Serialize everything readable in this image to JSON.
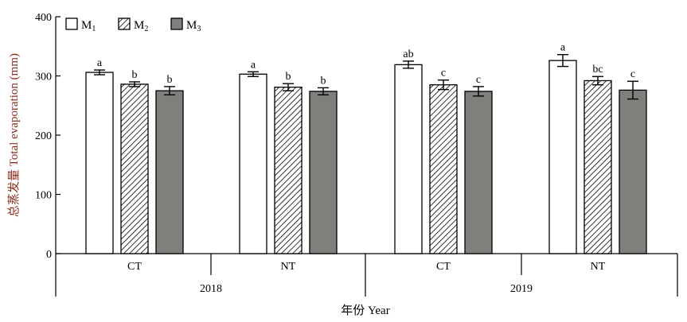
{
  "chart_data": {
    "type": "bar",
    "ylabel": "总蒸发量 Total evaporation (mm)",
    "xlabel": "年份 Year",
    "ylim": [
      0,
      400
    ],
    "yticks": [
      0,
      100,
      200,
      300,
      400
    ],
    "years": [
      {
        "label": "2018",
        "groups": [
          {
            "label": "CT",
            "values": [
              306,
              286,
              275
            ],
            "errors": [
              4,
              4,
              7
            ],
            "letters": [
              "a",
              "b",
              "b"
            ]
          },
          {
            "label": "NT",
            "values": [
              303,
              281,
              274
            ],
            "errors": [
              4,
              6,
              6
            ],
            "letters": [
              "a",
              "b",
              "b"
            ]
          }
        ]
      },
      {
        "label": "2019",
        "groups": [
          {
            "label": "CT",
            "values": [
              319,
              285,
              274
            ],
            "errors": [
              6,
              8,
              8
            ],
            "letters": [
              "ab",
              "c",
              "c"
            ]
          },
          {
            "label": "NT",
            "values": [
              326,
              292,
              276
            ],
            "errors": [
              10,
              7,
              15
            ],
            "letters": [
              "a",
              "bc",
              "c"
            ]
          }
        ]
      }
    ],
    "series": [
      {
        "name": "M",
        "sub": "1",
        "fill": "#ffffff",
        "pattern": "none"
      },
      {
        "name": "M",
        "sub": "2",
        "fill": "#ffffff",
        "pattern": "hatch"
      },
      {
        "name": "M",
        "sub": "3",
        "fill": "#7f7f7b",
        "pattern": "none"
      }
    ],
    "legend_position": "top-left",
    "grid": false
  },
  "colors": {
    "axis": "#000000",
    "ylabel_cjk": "#8B2E1A",
    "m3_fill": "#7f7f7b"
  }
}
